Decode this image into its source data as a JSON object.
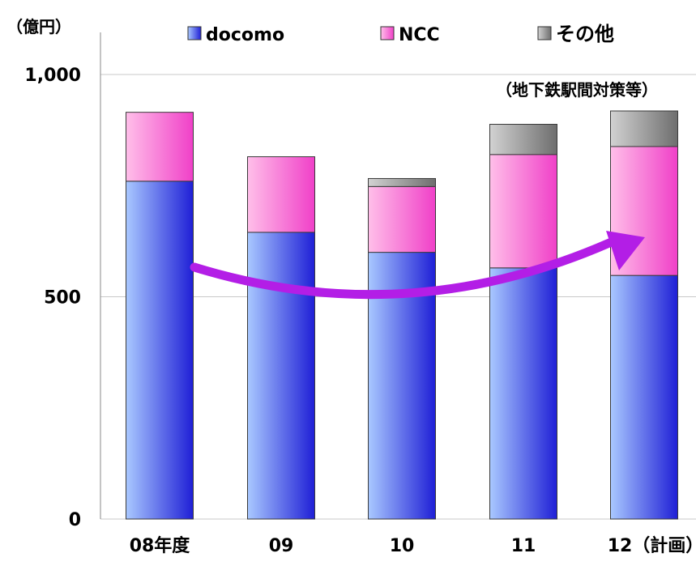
{
  "colors": {
    "docomo_light": "#a9c8ff",
    "docomo_dark": "#1f1fd6",
    "ncc_light": "#ffbfe9",
    "ncc_dark": "#f040c8",
    "other_light": "#d2d2d2",
    "other_dark": "#6e6e6e",
    "arrow": "#b31ee6",
    "grid": "#c8c8c8"
  },
  "chart_data": {
    "type": "bar",
    "stacked": true,
    "unit_label": "（億円）",
    "categories": [
      "08年度",
      "09",
      "10",
      "11",
      "12（計画）"
    ],
    "series": [
      {
        "name": "docomo",
        "values": [
          760,
          645,
          600,
          565,
          548
        ]
      },
      {
        "name": "NCC",
        "values": [
          155,
          170,
          148,
          255,
          290
        ]
      },
      {
        "name": "その他",
        "values": [
          0,
          0,
          18,
          68,
          80
        ]
      }
    ],
    "other_note": "（地下鉄駅間対策等）",
    "yticks": [
      0,
      500,
      1000
    ],
    "ytick_labels": [
      "0",
      "500",
      "1,000"
    ],
    "ylim": [
      0,
      1000
    ],
    "grid": true,
    "legend_position": "top",
    "annotation": "curved upward arrow from 08 to 12"
  }
}
